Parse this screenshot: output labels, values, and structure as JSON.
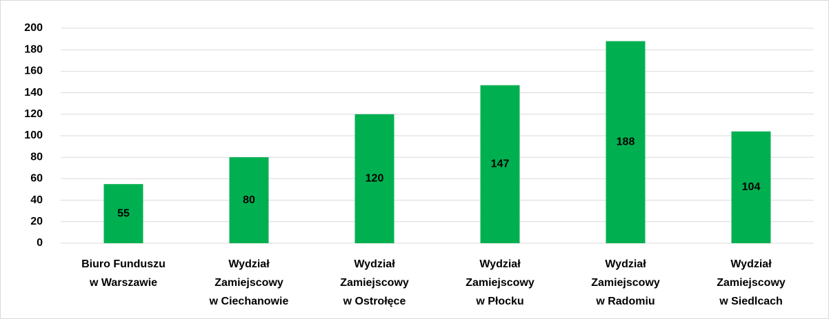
{
  "chart_data": {
    "type": "bar",
    "categories": [
      "Biuro Funduszu\nw Warszawie",
      "Wydział\nZamiejscowy\nw Ciechanowie",
      "Wydział\nZamiejscowy\nw Ostrołęce",
      "Wydział\nZamiejscowy\nw Płocku",
      "Wydział\nZamiejscowy\nw Radomiu",
      "Wydział\nZamiejscowy\nw Siedlcach"
    ],
    "values": [
      55,
      80,
      120,
      147,
      188,
      104
    ],
    "color": "#00b050",
    "ylim": [
      0,
      200
    ],
    "yticks": [
      0,
      20,
      40,
      60,
      80,
      100,
      120,
      140,
      160,
      180,
      200
    ],
    "grid": true
  }
}
